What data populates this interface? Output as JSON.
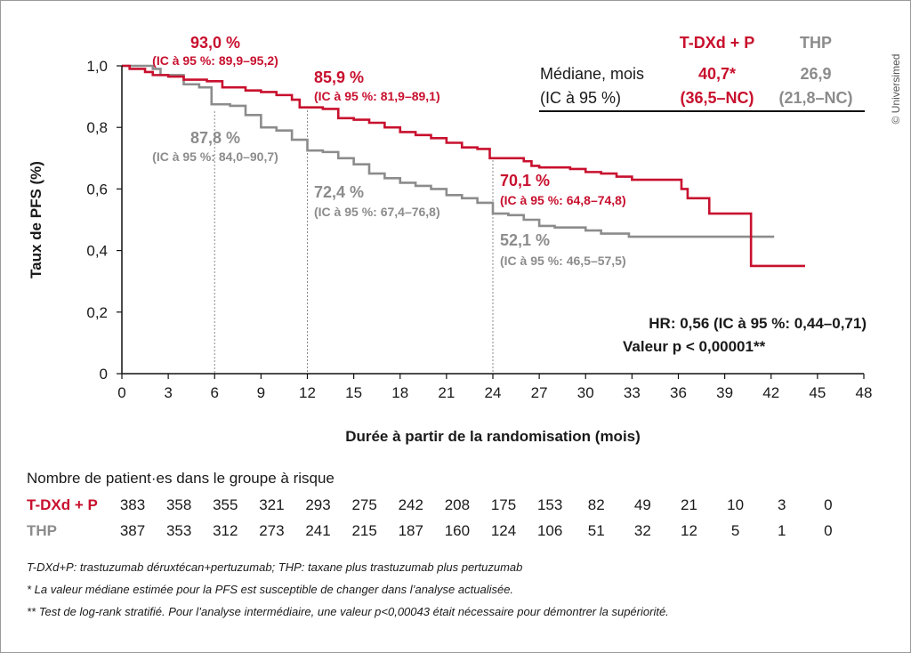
{
  "chart_data": {
    "type": "line",
    "subtype": "kaplan-meier step",
    "xlabel": "Durée à partir de la randomisation (mois)",
    "ylabel": "Taux de PFS (%)",
    "xlim": [
      0,
      48
    ],
    "ylim": [
      0,
      1.0
    ],
    "x_ticks": [
      0,
      3,
      6,
      9,
      12,
      15,
      18,
      21,
      24,
      27,
      30,
      33,
      36,
      39,
      42,
      45,
      48
    ],
    "y_ticks": [
      "0",
      "0,2",
      "0,4",
      "0,6",
      "0,8",
      "1,0"
    ],
    "y_tick_values": [
      0,
      0.2,
      0.4,
      0.6,
      0.8,
      1.0
    ],
    "grid": false,
    "reference_lines_x": [
      6,
      12,
      24
    ],
    "series": [
      {
        "name": "T-DXd + P",
        "color": "#c8102e",
        "points": [
          [
            0,
            1.0
          ],
          [
            0.5,
            0.99
          ],
          [
            1.5,
            0.98
          ],
          [
            2,
            0.97
          ],
          [
            3,
            0.965
          ],
          [
            4,
            0.955
          ],
          [
            5.5,
            0.95
          ],
          [
            6.5,
            0.93
          ],
          [
            8,
            0.92
          ],
          [
            9,
            0.915
          ],
          [
            10,
            0.905
          ],
          [
            11,
            0.89
          ],
          [
            11.5,
            0.865
          ],
          [
            13,
            0.86
          ],
          [
            14,
            0.83
          ],
          [
            15,
            0.825
          ],
          [
            16,
            0.815
          ],
          [
            17,
            0.8
          ],
          [
            18,
            0.785
          ],
          [
            19,
            0.775
          ],
          [
            20,
            0.765
          ],
          [
            21,
            0.75
          ],
          [
            22,
            0.735
          ],
          [
            23,
            0.73
          ],
          [
            23.8,
            0.7
          ],
          [
            26,
            0.69
          ],
          [
            26.5,
            0.675
          ],
          [
            27,
            0.67
          ],
          [
            29,
            0.665
          ],
          [
            30,
            0.655
          ],
          [
            31,
            0.65
          ],
          [
            32,
            0.64
          ],
          [
            33,
            0.63
          ],
          [
            36.2,
            0.6
          ],
          [
            36.6,
            0.57
          ],
          [
            38,
            0.52
          ],
          [
            40.7,
            0.35
          ],
          [
            44.2,
            0.35
          ]
        ]
      },
      {
        "name": "THP",
        "color": "#8c8c8c",
        "points": [
          [
            0,
            1.0
          ],
          [
            2,
            0.99
          ],
          [
            2.5,
            0.97
          ],
          [
            4,
            0.94
          ],
          [
            5,
            0.93
          ],
          [
            5.8,
            0.875
          ],
          [
            7,
            0.87
          ],
          [
            8,
            0.84
          ],
          [
            9,
            0.8
          ],
          [
            10,
            0.79
          ],
          [
            11,
            0.76
          ],
          [
            12,
            0.725
          ],
          [
            13,
            0.72
          ],
          [
            14,
            0.7
          ],
          [
            15,
            0.68
          ],
          [
            16,
            0.65
          ],
          [
            17,
            0.635
          ],
          [
            18,
            0.62
          ],
          [
            19,
            0.61
          ],
          [
            20,
            0.6
          ],
          [
            21,
            0.58
          ],
          [
            22,
            0.57
          ],
          [
            23,
            0.555
          ],
          [
            24,
            0.52
          ],
          [
            25,
            0.515
          ],
          [
            26,
            0.5
          ],
          [
            27,
            0.48
          ],
          [
            28,
            0.475
          ],
          [
            30,
            0.465
          ],
          [
            31,
            0.455
          ],
          [
            32.8,
            0.445
          ],
          [
            42.2,
            0.445
          ]
        ]
      }
    ],
    "annotations": {
      "red_6": {
        "value": "93,0 %",
        "ci": "(IC à 95 %: 89,9–95,2)"
      },
      "red_12": {
        "value": "85,9 %",
        "ci": "(IC à 95 %: 81,9–89,1)"
      },
      "red_24": {
        "value": "70,1 %",
        "ci": "(IC à 95 %: 64,8–74,8)"
      },
      "gray_6": {
        "value": "87,8 %",
        "ci": "(IC à 95 %: 84,0–90,7)"
      },
      "gray_12": {
        "value": "72,4 %",
        "ci": "(IC à 95 %: 67,4–76,8)"
      },
      "gray_24": {
        "value": "52,1 %",
        "ci": "(IC à 95 %: 46,5–57,5)"
      }
    },
    "median_table": {
      "col1": "T-DXd + P",
      "col2": "THP",
      "row_label_1": "Médiane, mois",
      "row_label_2": "(IC à 95 %)",
      "red_median": "40,7*",
      "red_ci": "(36,5–NC)",
      "gray_median": "26,9",
      "gray_ci": "(21,8–NC)"
    },
    "hr": "HR: 0,56 (IC à 95 %: 0,44–0,71)",
    "pvalue": "Valeur p < 0,00001**"
  },
  "risk_table": {
    "title": "Nombre de patient·es dans le groupe à risque",
    "rows": [
      {
        "label": "T-DXd + P",
        "color": "#c8102e",
        "values": [
          "383",
          "358",
          "355",
          "321",
          "293",
          "275",
          "242",
          "208",
          "175",
          "153",
          "82",
          "49",
          "21",
          "10",
          "3",
          "0"
        ]
      },
      {
        "label": "THP",
        "color": "#8c8c8c",
        "values": [
          "387",
          "353",
          "312",
          "273",
          "241",
          "215",
          "187",
          "160",
          "124",
          "106",
          "51",
          "32",
          "12",
          "5",
          "1",
          "0"
        ]
      }
    ]
  },
  "footnotes": [
    "T-DXd+P: trastuzumab déruxtécan+pertuzumab; THP: taxane plus trastuzumab plus pertuzumab",
    "* La valeur médiane estimée pour la PFS est susceptible de changer dans l’analyse actualisée.",
    "** Test de log-rank stratifié. Pour l’analyse intermédiaire, une valeur p<0,00043 était nécessaire pour démontrer la supériorité."
  ],
  "copyright": "© Universimed"
}
